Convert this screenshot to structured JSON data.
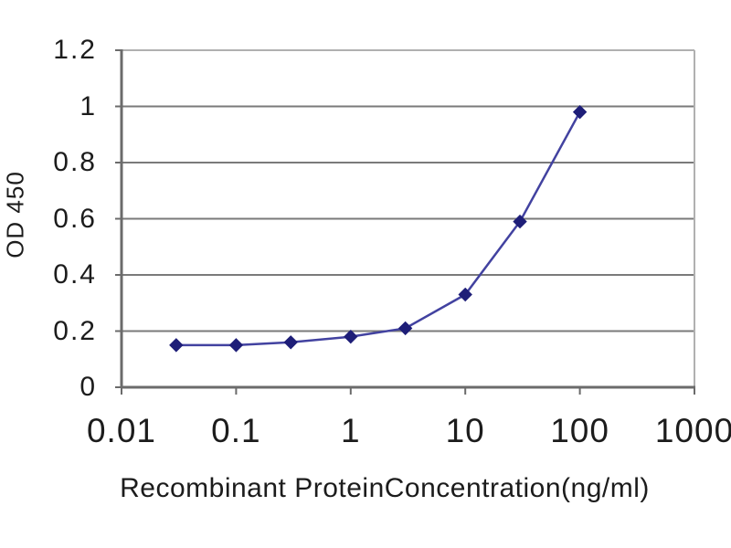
{
  "chart_data": {
    "type": "line",
    "title": "",
    "xlabel": "Recombinant ProteinConcentration(ng/ml)",
    "ylabel": "OD 450",
    "x_scale": "log",
    "xlim": [
      0.01,
      1000
    ],
    "ylim": [
      0,
      1.2
    ],
    "x_ticks": [
      0.01,
      0.1,
      1,
      10,
      100,
      1000
    ],
    "x_tick_labels": [
      "0.01",
      "0.1",
      "1",
      "10",
      "100",
      "1000"
    ],
    "y_ticks": [
      0,
      0.2,
      0.4,
      0.6,
      0.8,
      1,
      1.2
    ],
    "y_tick_labels": [
      "0",
      "0.2",
      "0.4",
      "0.6",
      "0.8",
      "1",
      "1.2"
    ],
    "grid": "horizontal",
    "legend": "none",
    "x": [
      0.03,
      0.1,
      0.3,
      1,
      3,
      10,
      30,
      100
    ],
    "series": [
      {
        "name": "OD 450",
        "marker": "diamond",
        "values": [
          0.15,
          0.15,
          0.16,
          0.18,
          0.21,
          0.33,
          0.59,
          0.98
        ]
      }
    ],
    "colors": {
      "line": "#4242a0",
      "marker": "#1e1e78",
      "grid": "#7a7a7a",
      "axis": "#6b6b6b",
      "border_light": "#b0b0b0",
      "text": "#1c1c1c",
      "background": "#ffffff"
    }
  }
}
